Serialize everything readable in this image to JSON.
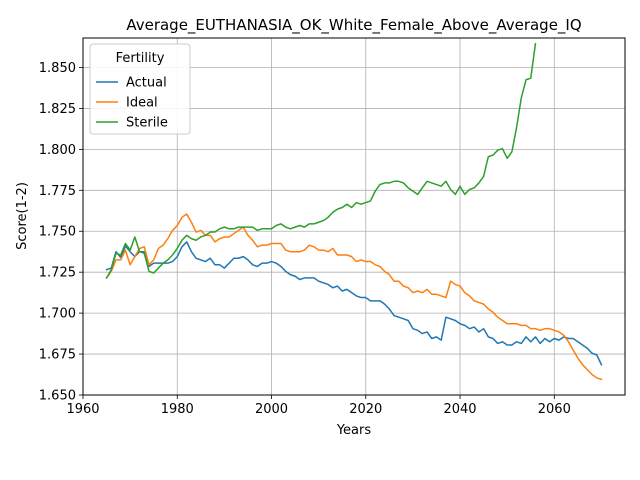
{
  "chart_data": {
    "type": "line",
    "title": "Average_EUTHANASIA_OK_White_Female_Above_Average_IQ",
    "xlabel": "Years",
    "ylabel": "Score(1-2)",
    "xlim": [
      1960,
      2075
    ],
    "ylim": [
      1.65,
      1.868
    ],
    "xticks": [
      1960,
      1980,
      2000,
      2020,
      2040,
      2060
    ],
    "yticks": [
      1.65,
      1.675,
      1.7,
      1.725,
      1.75,
      1.775,
      1.8,
      1.825,
      1.85
    ],
    "ytick_labels": [
      "1.650",
      "1.675",
      "1.700",
      "1.725",
      "1.750",
      "1.775",
      "1.800",
      "1.825",
      "1.850"
    ],
    "grid": true,
    "legend": {
      "title": "Fertility",
      "placement": "top-left"
    },
    "series": [
      {
        "name": "Actual",
        "color": "#1f77b4",
        "x": [
          1965,
          1966,
          1967,
          1968,
          1969,
          1970,
          1971,
          1972,
          1973,
          1974,
          1975,
          1976,
          1977,
          1978,
          1979,
          1980,
          1981,
          1982,
          1983,
          1984,
          1985,
          1986,
          1987,
          1988,
          1989,
          1990,
          1991,
          1992,
          1993,
          1994,
          1995,
          1996,
          1997,
          1998,
          1999,
          2000,
          2001,
          2002,
          2003,
          2004,
          2005,
          2006,
          2007,
          2008,
          2009,
          2010,
          2011,
          2012,
          2013,
          2014,
          2015,
          2016,
          2017,
          2018,
          2019,
          2020,
          2021,
          2022,
          2023,
          2024,
          2025,
          2026,
          2027,
          2028,
          2029,
          2030,
          2031,
          2032,
          2033,
          2034,
          2035,
          2036,
          2037,
          2038,
          2039,
          2040,
          2041,
          2042,
          2043,
          2044,
          2045,
          2046,
          2047,
          2048,
          2049,
          2050,
          2051,
          2052,
          2053,
          2054,
          2055,
          2056,
          2057,
          2058,
          2059,
          2060,
          2061,
          2062,
          2063,
          2064,
          2065,
          2066,
          2067,
          2068,
          2069,
          2070
        ],
        "y": [
          1.7265,
          1.7275,
          1.7375,
          1.734,
          1.741,
          1.7375,
          1.7345,
          1.7375,
          1.7375,
          1.7285,
          1.7305,
          1.7305,
          1.7305,
          1.7305,
          1.7315,
          1.7345,
          1.7405,
          1.7435,
          1.7375,
          1.7335,
          1.7325,
          1.7315,
          1.7335,
          1.7295,
          1.7295,
          1.7275,
          1.7305,
          1.7335,
          1.7335,
          1.7345,
          1.7325,
          1.7295,
          1.7285,
          1.7305,
          1.7305,
          1.7315,
          1.7305,
          1.7285,
          1.7255,
          1.7235,
          1.7225,
          1.7205,
          1.7215,
          1.7215,
          1.7215,
          1.7195,
          1.7185,
          1.7175,
          1.7155,
          1.7165,
          1.7135,
          1.7145,
          1.7125,
          1.7105,
          1.7095,
          1.7095,
          1.7075,
          1.7075,
          1.7075,
          1.7055,
          1.7025,
          1.6985,
          1.6975,
          1.6965,
          1.6955,
          1.6905,
          1.6895,
          1.6875,
          1.6885,
          1.6845,
          1.6855,
          1.6835,
          1.6975,
          1.6965,
          1.6955,
          1.6935,
          1.6925,
          1.6905,
          1.6915,
          1.6885,
          1.6905,
          1.6855,
          1.6845,
          1.6815,
          1.6825,
          1.6805,
          1.6805,
          1.6825,
          1.6815,
          1.6855,
          1.6825,
          1.6855,
          1.6815,
          1.6845,
          1.6825,
          1.6845,
          1.6835,
          1.6855,
          1.6845,
          1.6845,
          1.6825,
          1.6805,
          1.6785,
          1.6755,
          1.6745,
          1.6685
        ]
      },
      {
        "name": "Ideal",
        "color": "#ff7f0e",
        "x": [
          1965,
          1966,
          1967,
          1968,
          1969,
          1970,
          1971,
          1972,
          1973,
          1974,
          1975,
          1976,
          1977,
          1978,
          1979,
          1980,
          1981,
          1982,
          1983,
          1984,
          1985,
          1986,
          1987,
          1988,
          1989,
          1990,
          1991,
          1992,
          1993,
          1994,
          1995,
          1996,
          1997,
          1998,
          1999,
          2000,
          2001,
          2002,
          2003,
          2004,
          2005,
          2006,
          2007,
          2008,
          2009,
          2010,
          2011,
          2012,
          2013,
          2014,
          2015,
          2016,
          2017,
          2018,
          2019,
          2020,
          2021,
          2022,
          2023,
          2024,
          2025,
          2026,
          2027,
          2028,
          2029,
          2030,
          2031,
          2032,
          2033,
          2034,
          2035,
          2036,
          2037,
          2038,
          2039,
          2040,
          2041,
          2042,
          2043,
          2044,
          2045,
          2046,
          2047,
          2048,
          2049,
          2050,
          2051,
          2052,
          2053,
          2054,
          2055,
          2056,
          2057,
          2058,
          2059,
          2060,
          2061,
          2062,
          2063,
          2064,
          2065,
          2066,
          2067,
          2068,
          2069,
          2070
        ],
        "y": [
          1.7215,
          1.7255,
          1.7325,
          1.7325,
          1.7385,
          1.7295,
          1.7345,
          1.7395,
          1.7405,
          1.7295,
          1.7325,
          1.7395,
          1.7415,
          1.7455,
          1.7505,
          1.7535,
          1.7585,
          1.7605,
          1.7555,
          1.7495,
          1.7505,
          1.7475,
          1.7475,
          1.7435,
          1.7455,
          1.7465,
          1.7465,
          1.7485,
          1.7505,
          1.7525,
          1.7475,
          1.7445,
          1.7405,
          1.7415,
          1.7415,
          1.7425,
          1.7425,
          1.7425,
          1.7385,
          1.7375,
          1.7375,
          1.7375,
          1.7385,
          1.7415,
          1.7405,
          1.7385,
          1.7385,
          1.7375,
          1.7395,
          1.7355,
          1.7355,
          1.7355,
          1.7345,
          1.7315,
          1.7325,
          1.7315,
          1.7315,
          1.7295,
          1.7285,
          1.7255,
          1.7235,
          1.7195,
          1.7195,
          1.7165,
          1.7155,
          1.7125,
          1.7135,
          1.7125,
          1.7145,
          1.7115,
          1.7115,
          1.7105,
          1.7095,
          1.7195,
          1.7175,
          1.7165,
          1.7125,
          1.7105,
          1.7075,
          1.7065,
          1.7055,
          1.7025,
          1.7005,
          1.6975,
          1.6955,
          1.6935,
          1.6935,
          1.6935,
          1.6925,
          1.6925,
          1.6905,
          1.6905,
          1.6895,
          1.6905,
          1.6905,
          1.6895,
          1.6885,
          1.6865,
          1.6825,
          1.6775,
          1.6725,
          1.6685,
          1.6655,
          1.6625,
          1.6605,
          1.6595
        ]
      },
      {
        "name": "Sterile",
        "color": "#2ca02c",
        "x": [
          1965,
          1966,
          1967,
          1968,
          1969,
          1970,
          1971,
          1972,
          1973,
          1974,
          1975,
          1976,
          1977,
          1978,
          1979,
          1980,
          1981,
          1982,
          1983,
          1984,
          1985,
          1986,
          1987,
          1988,
          1989,
          1990,
          1991,
          1992,
          1993,
          1994,
          1995,
          1996,
          1997,
          1998,
          1999,
          2000,
          2001,
          2002,
          2003,
          2004,
          2005,
          2006,
          2007,
          2008,
          2009,
          2010,
          2011,
          2012,
          2013,
          2014,
          2015,
          2016,
          2017,
          2018,
          2019,
          2020,
          2021,
          2022,
          2023,
          2024,
          2025,
          2026,
          2027,
          2028,
          2029,
          2030,
          2031,
          2032,
          2033,
          2034,
          2035,
          2036,
          2037,
          2038,
          2039,
          2040,
          2041,
          2042,
          2043,
          2044,
          2045,
          2046,
          2047,
          2048,
          2049,
          2050,
          2051,
          2052,
          2053,
          2054,
          2055,
          2056
        ],
        "y": [
          1.7215,
          1.7265,
          1.7365,
          1.7355,
          1.7425,
          1.7385,
          1.7465,
          1.7375,
          1.7365,
          1.7255,
          1.7245,
          1.7275,
          1.7305,
          1.7325,
          1.7355,
          1.7395,
          1.7445,
          1.7475,
          1.7455,
          1.7445,
          1.7465,
          1.7475,
          1.7495,
          1.7495,
          1.7515,
          1.7525,
          1.7515,
          1.7515,
          1.7525,
          1.7525,
          1.7525,
          1.7525,
          1.7505,
          1.7515,
          1.7515,
          1.7515,
          1.7535,
          1.7545,
          1.7525,
          1.7515,
          1.7525,
          1.7535,
          1.7525,
          1.7545,
          1.7545,
          1.7555,
          1.7565,
          1.7585,
          1.7615,
          1.7635,
          1.7645,
          1.7665,
          1.7645,
          1.7675,
          1.7665,
          1.7675,
          1.7685,
          1.7745,
          1.7785,
          1.7795,
          1.7795,
          1.7805,
          1.7805,
          1.7795,
          1.7765,
          1.7745,
          1.7725,
          1.7765,
          1.7805,
          1.7795,
          1.7785,
          1.7775,
          1.7805,
          1.7755,
          1.7725,
          1.7775,
          1.7725,
          1.7755,
          1.7765,
          1.7795,
          1.7835,
          1.7955,
          1.7965,
          1.7995,
          1.8005,
          1.7945,
          1.7985,
          1.8135,
          1.8315,
          1.8425,
          1.8435,
          1.8645
        ]
      }
    ]
  }
}
